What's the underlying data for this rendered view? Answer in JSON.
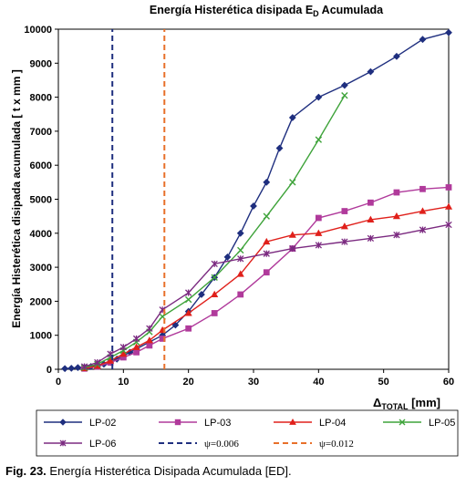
{
  "chart_data": {
    "type": "line",
    "title_main": "Energía Histerética disipada E",
    "title_sub": "D",
    "title_end": " Acumulada",
    "ylabel": "Energía  Histerética disipada acumulada  [ t x mm  ]",
    "xlabel_main": "Δ",
    "xlabel_sub": "TOTAL",
    "xlabel_end": " [mm]",
    "xlim": [
      0,
      60
    ],
    "ylim": [
      0,
      10000
    ],
    "xticks": [
      0,
      10,
      20,
      30,
      40,
      50,
      60
    ],
    "yticks": [
      0,
      1000,
      2000,
      3000,
      4000,
      5000,
      6000,
      7000,
      8000,
      9000,
      10000
    ],
    "grid": false,
    "legend_position": "bottom",
    "series": [
      {
        "name": "LP-02",
        "color": "#1f2f7f",
        "marker": "diamond",
        "style": "solid",
        "x": [
          1,
          2,
          3,
          4,
          5,
          6,
          7,
          8,
          9,
          10,
          11,
          12,
          14,
          16,
          18,
          20,
          22,
          24,
          26,
          28,
          30,
          32,
          34,
          36,
          40,
          44,
          48,
          52,
          56,
          60
        ],
        "y": [
          20,
          30,
          50,
          60,
          80,
          100,
          150,
          200,
          300,
          400,
          500,
          600,
          800,
          1000,
          1300,
          1700,
          2200,
          2700,
          3300,
          4000,
          4800,
          5500,
          6500,
          7400,
          8000,
          8350,
          8750,
          9200,
          9700,
          9900
        ]
      },
      {
        "name": "LP-03",
        "color": "#b03a9b",
        "marker": "square",
        "style": "solid",
        "x": [
          4,
          6,
          8,
          10,
          12,
          14,
          16,
          20,
          24,
          28,
          32,
          36,
          40,
          44,
          48,
          52,
          56,
          60
        ],
        "y": [
          20,
          80,
          200,
          350,
          500,
          700,
          900,
          1200,
          1650,
          2200,
          2850,
          3550,
          4450,
          4650,
          4900,
          5200,
          5300,
          5350
        ]
      },
      {
        "name": "LP-04",
        "color": "#e0201b",
        "marker": "triangle",
        "style": "solid",
        "x": [
          4,
          6,
          8,
          10,
          12,
          14,
          16,
          20,
          24,
          28,
          32,
          36,
          40,
          44,
          48,
          52,
          56,
          60
        ],
        "y": [
          30,
          100,
          250,
          450,
          650,
          850,
          1150,
          1650,
          2200,
          2800,
          3750,
          3950,
          4000,
          4200,
          4400,
          4500,
          4650,
          4780
        ]
      },
      {
        "name": "LP-05",
        "color": "#3ea33a",
        "marker": "x",
        "style": "solid",
        "x": [
          4,
          6,
          8,
          10,
          12,
          14,
          16,
          20,
          24,
          28,
          32,
          36,
          40,
          44
        ],
        "y": [
          50,
          150,
          350,
          550,
          800,
          1100,
          1550,
          2050,
          2700,
          3500,
          4500,
          5500,
          6750,
          8050
        ]
      },
      {
        "name": "LP-06",
        "color": "#7b2a80",
        "marker": "star",
        "style": "solid",
        "x": [
          4,
          6,
          8,
          10,
          12,
          14,
          16,
          20,
          24,
          28,
          32,
          36,
          40,
          44,
          48,
          52,
          56,
          60
        ],
        "y": [
          80,
          200,
          450,
          650,
          900,
          1200,
          1750,
          2250,
          3100,
          3250,
          3400,
          3550,
          3650,
          3750,
          3850,
          3950,
          4100,
          4250
        ]
      },
      {
        "name": "ψ=0.006",
        "color": "#1f2f7f",
        "marker": "none",
        "style": "dashed",
        "x": [
          8.3,
          8.3
        ],
        "y": [
          0,
          10000
        ]
      },
      {
        "name": "ψ=0.012",
        "color": "#e8702a",
        "marker": "none",
        "style": "dashed",
        "x": [
          16.3,
          16.3
        ],
        "y": [
          0,
          10000
        ]
      }
    ]
  },
  "caption": {
    "label": "Fig. 23.",
    "text": " Energía Histerética Disipada Acumulada [ED]."
  }
}
